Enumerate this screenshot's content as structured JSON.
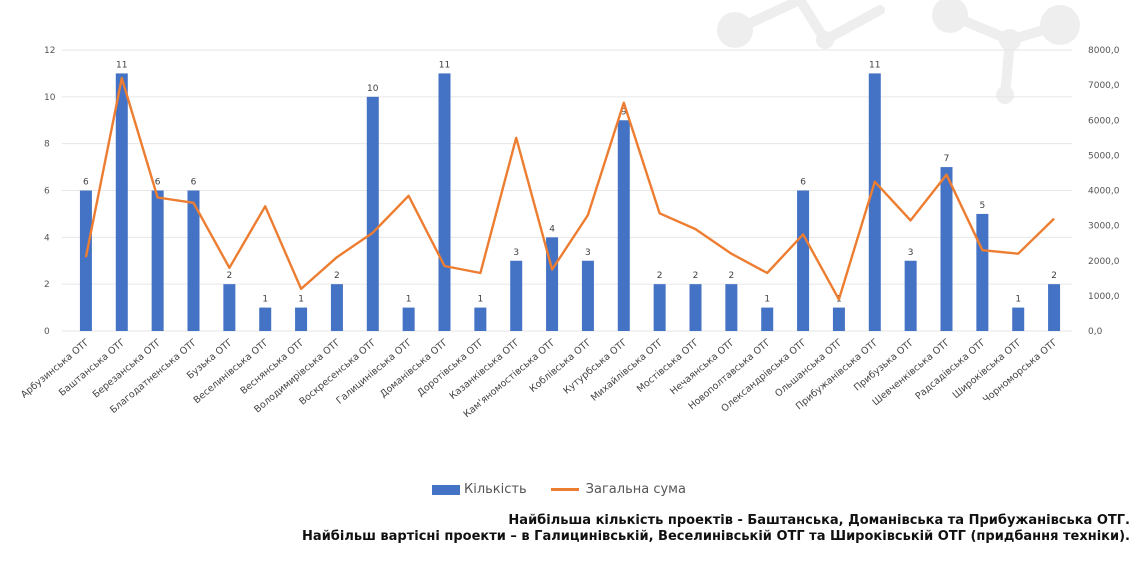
{
  "chart_data": {
    "type": "bar",
    "categories": [
      "Арбузинська ОТГ",
      "Баштанська ОТГ",
      "Березанська ОТГ",
      "Благодатненська ОТГ",
      "Бузька ОТГ",
      "Веселинівська ОТГ",
      "Веснянська ОТГ",
      "Володимирівська ОТГ",
      "Воскресенська ОТГ",
      "Галицинівська ОТГ",
      "Доманівська ОТГ",
      "Доротівська ОТГ",
      "Казанківська ОТГ",
      "Кам'яномостівська ОТГ",
      "Коблівська ОТГ",
      "Кутурбська ОТГ",
      "Михайлівська ОТГ",
      "Мостівська ОТГ",
      "Нечаянська ОТГ",
      "Новополтавська ОТГ",
      "Олександрівська ОТГ",
      "Ольшанська ОТГ",
      "Прибужанівська ОТГ",
      "Прибузька ОТГ",
      "Шевченківська ОТГ",
      "Радсадівська ОТГ",
      "Широківська ОТГ",
      "Чорноморська ОТГ"
    ],
    "series": [
      {
        "name": "Кількість",
        "type": "bar",
        "axis": "left",
        "color": "#4472c4",
        "values": [
          6,
          11,
          6,
          6,
          2,
          1,
          1,
          2,
          10,
          1,
          11,
          1,
          3,
          4,
          3,
          9,
          2,
          2,
          2,
          1,
          6,
          1,
          11,
          3,
          7,
          5,
          1,
          2
        ]
      },
      {
        "name": "Загальна сума",
        "type": "line",
        "axis": "right",
        "color": "#ed7d31",
        "values": [
          2100,
          7200,
          3800,
          3650,
          1800,
          3550,
          1200,
          2100,
          2800,
          3850,
          1850,
          1650,
          5500,
          1750,
          3300,
          6500,
          3350,
          2900,
          2200,
          1650,
          2750,
          900,
          4250,
          3150,
          4450,
          2300,
          2200,
          3200
        ]
      }
    ],
    "y_left": {
      "min": 0,
      "max": 12,
      "ticks": [
        "0",
        "2",
        "4",
        "6",
        "8",
        "10",
        "12"
      ]
    },
    "y_right": {
      "min": 0,
      "max": 8000,
      "ticks": [
        "0,0",
        "1000,0",
        "2000,0",
        "3000,0",
        "4000,0",
        "5000,0",
        "6000,0",
        "7000,0",
        "8000,0"
      ]
    },
    "grid": true,
    "legend_position": "bottom"
  },
  "legend": {
    "bar_label": "Кількість",
    "line_label": "Загальна сума"
  },
  "captions": {
    "line1": "Найбільша кількість проектів -  Баштанська, Доманівська та Прибужанівська ОТГ.",
    "line2": "Найбільш вартісні проекти – в Галицинівській, Веселинівській ОТГ та Широківській ОТГ (придбання техніки)."
  }
}
